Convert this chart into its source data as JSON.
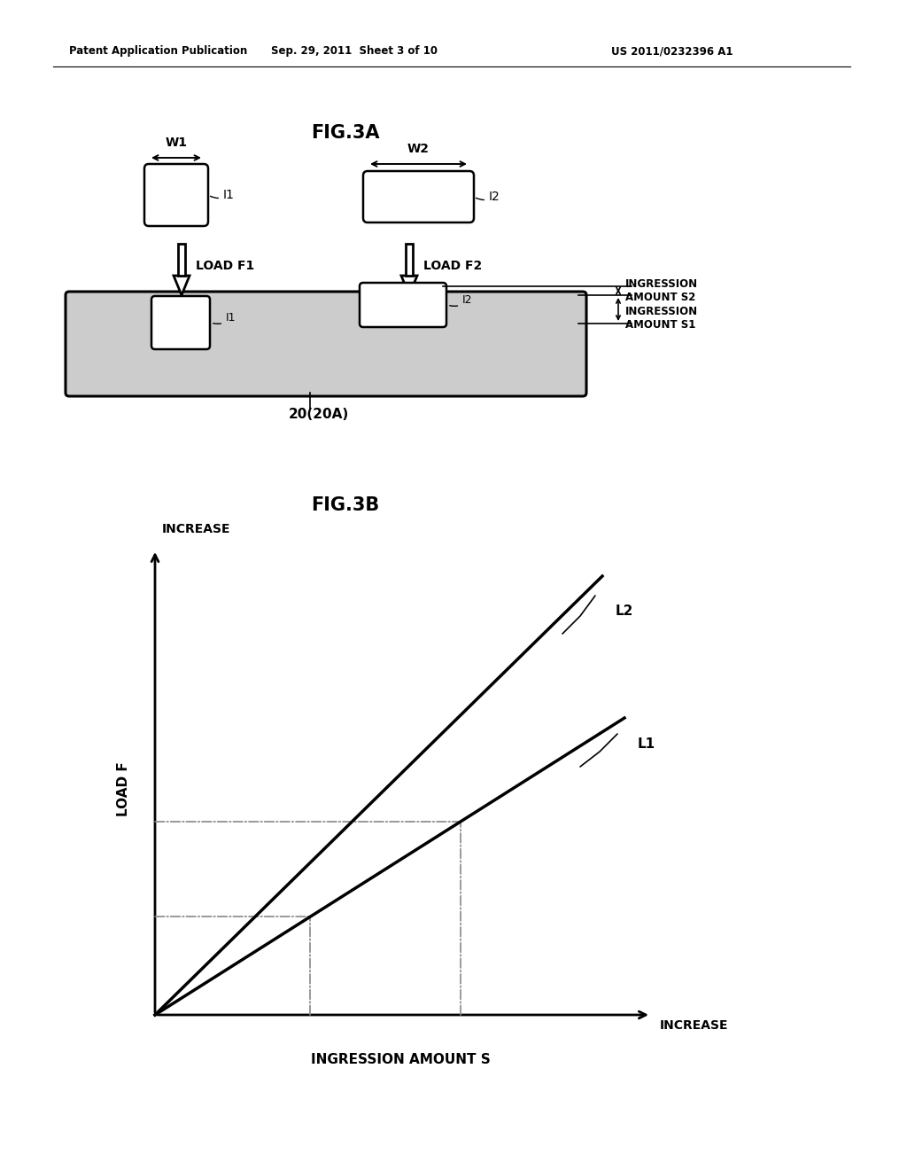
{
  "bg_color": "#ffffff",
  "header_left": "Patent Application Publication",
  "header_mid": "Sep. 29, 2011  Sheet 3 of 10",
  "header_right": "US 2011/0232396 A1",
  "fig3a_title": "FIG.3A",
  "fig3b_title": "FIG.3B",
  "label_W1": "W1",
  "label_W2": "W2",
  "label_I1": "I1",
  "label_I2": "I2",
  "label_load_f1": "LOAD F1",
  "label_load_f2": "LOAD F2",
  "label_ingression_s1": "INGRESSION\nAMOUNT S1",
  "label_ingression_s2": "INGRESSION\nAMOUNT S2",
  "label_20": "20(20A)",
  "label_increase_y": "INCREASE",
  "label_increase_x": "INCREASE",
  "label_load_f": "LOAD F",
  "label_ingression_s": "INGRESSION AMOUNT S",
  "label_L1": "L1",
  "label_L2": "L2"
}
